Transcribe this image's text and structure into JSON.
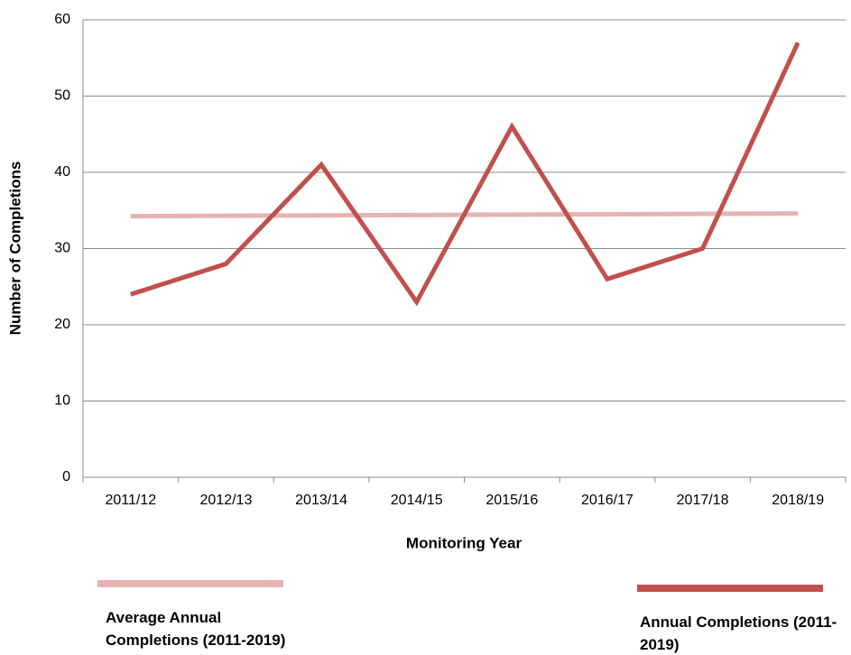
{
  "chart_data": {
    "type": "line",
    "y_label": "Number of Completions",
    "x_label": "Monitoring Year",
    "categories": [
      "2011/12",
      "2012/13",
      "2013/14",
      "2014/15",
      "2015/16",
      "2016/17",
      "2017/18",
      "2018/19"
    ],
    "series": [
      {
        "name": "Average Annual Completions (2011-2019)",
        "color": "#e6b3b2",
        "values": [
          34.25,
          34.3,
          34.35,
          34.4,
          34.45,
          34.5,
          34.55,
          34.6
        ]
      },
      {
        "name": "Annual Completions (2011-2019)",
        "color": "#c0504d",
        "values": [
          24,
          28,
          41,
          23,
          46,
          26,
          30,
          57
        ]
      }
    ],
    "ylim": [
      0,
      60
    ],
    "yticks": [
      0,
      10,
      20,
      30,
      40,
      50,
      60
    ],
    "grid": true,
    "legend": "bottom"
  }
}
